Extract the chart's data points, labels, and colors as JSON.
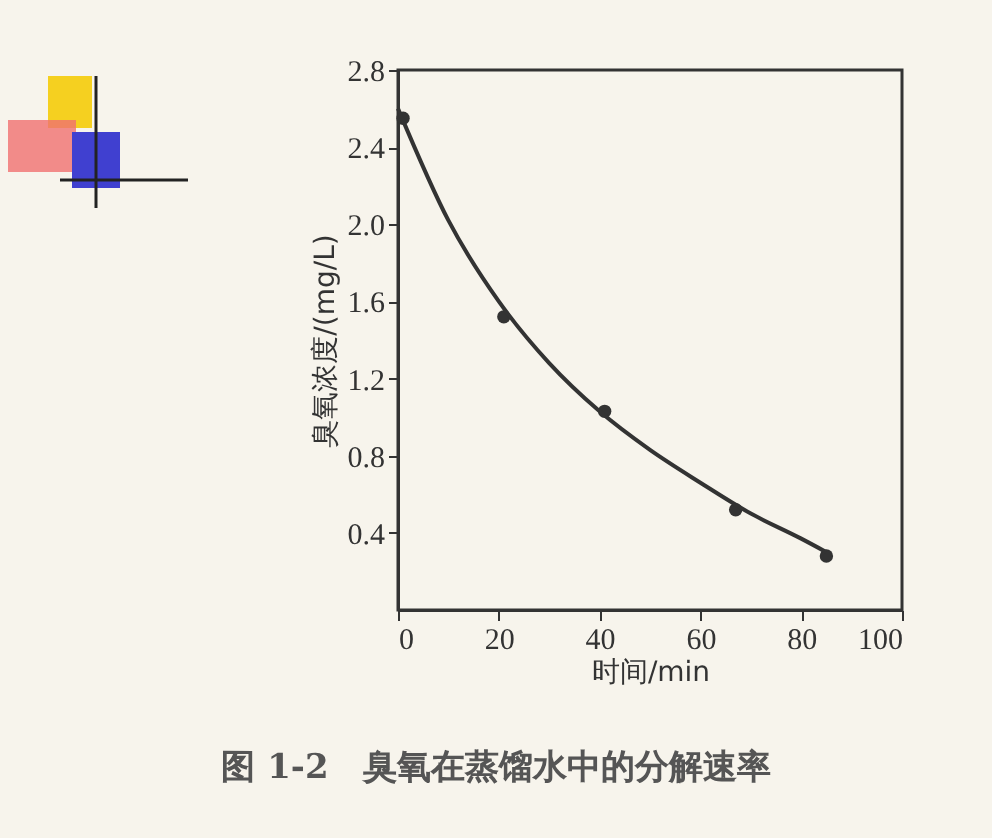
{
  "chart_data": {
    "type": "scatter",
    "xlabel": "时间/min",
    "ylabel": "臭氧浓度/(mg/L)",
    "xlim": [
      0,
      100
    ],
    "xticks": [
      0,
      20,
      40,
      60,
      80,
      100
    ],
    "ylim": [
      0,
      2.8
    ],
    "yticks": [
      0.4,
      0.8,
      1.2,
      1.6,
      {
        "value": 2,
        "label": "2.0"
      },
      2.4,
      2.8
    ],
    "grid": false,
    "series": [
      {
        "marker": "circle",
        "color": "#333333",
        "x": [
          1,
          21,
          41,
          67,
          85
        ],
        "values": [
          2.55,
          1.52,
          1.03,
          0.52,
          0.28
        ]
      },
      {
        "type": "line",
        "color": "#333333",
        "x": [
          0,
          10,
          20,
          30,
          40,
          50,
          60,
          70,
          80,
          85
        ],
        "values": [
          2.6,
          2.02,
          1.6,
          1.28,
          1.03,
          0.83,
          0.66,
          0.5,
          0.37,
          0.3
        ]
      }
    ],
    "annotations": [
      "图 1-2　臭氧在蒸馏水中的分解速率"
    ]
  }
}
